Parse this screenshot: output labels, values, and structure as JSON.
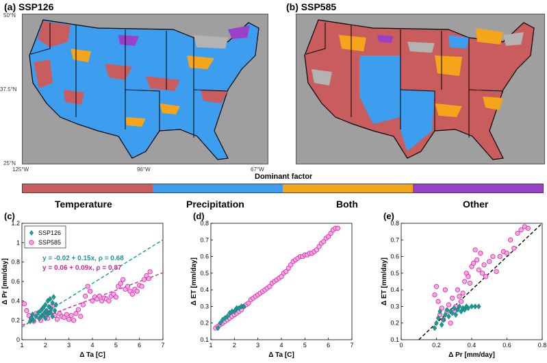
{
  "colors": {
    "temperature": "#c95c5c",
    "precipitation": "#3d9ef0",
    "both": "#f5a51a",
    "other": "#9a3fc8",
    "nodata": "#b3b3b3",
    "ssp126": "#1a9a96",
    "ssp585": "#d6249c"
  },
  "maps": {
    "a": {
      "title": "(a) SSP126"
    },
    "b": {
      "title": "(b) SSP585"
    },
    "lat_ticks": [
      "50°N",
      "37.5°N",
      "25°N"
    ],
    "lon_ticks": [
      "125°W",
      "96°W",
      "67°W"
    ]
  },
  "colorbar": {
    "label": "Dominant factor",
    "categories": [
      "Temperature",
      "Precipitation",
      "Both",
      "Other"
    ]
  },
  "chart_data": [
    {
      "type": "scatter",
      "panel": "(c)",
      "xlabel": "Δ Ta [C]",
      "ylabel": "Δ Pr [mm/day]",
      "xlim": [
        1,
        7
      ],
      "ylim": [
        0,
        1.2
      ],
      "xticks": [
        1,
        2,
        3,
        4,
        5,
        6,
        7
      ],
      "yticks": [
        0,
        0.2,
        0.4,
        0.6,
        0.8,
        1,
        1.2
      ],
      "legend": [
        "SSP126",
        "SSP585"
      ],
      "annotations": [
        "y = -0.02 + 0.15x,  ρ = 0.68",
        "y =  0.06 + 0.09x,  ρ = 0.87"
      ],
      "fits": [
        {
          "name": "SSP126",
          "intercept": -0.02,
          "slope": 0.15
        },
        {
          "name": "SSP585",
          "intercept": 0.06,
          "slope": 0.09
        }
      ],
      "series": [
        {
          "name": "SSP126",
          "points": [
            [
              1.35,
              0.19
            ],
            [
              1.4,
              0.22
            ],
            [
              1.45,
              0.26
            ],
            [
              1.5,
              0.2
            ],
            [
              1.6,
              0.24
            ],
            [
              1.7,
              0.28
            ],
            [
              1.75,
              0.22
            ],
            [
              1.8,
              0.3
            ],
            [
              1.85,
              0.25
            ],
            [
              1.9,
              0.33
            ],
            [
              1.95,
              0.27
            ],
            [
              2.0,
              0.36
            ],
            [
              2.0,
              0.22
            ],
            [
              2.05,
              0.3
            ],
            [
              2.1,
              0.4
            ],
            [
              2.1,
              0.26
            ],
            [
              2.15,
              0.34
            ],
            [
              2.2,
              0.28
            ],
            [
              2.2,
              0.42
            ],
            [
              2.25,
              0.32
            ],
            [
              2.3,
              0.38
            ],
            [
              2.3,
              0.24
            ],
            [
              2.35,
              0.44
            ],
            [
              2.4,
              0.3
            ],
            [
              2.45,
              0.36
            ]
          ]
        },
        {
          "name": "SSP585",
          "points": [
            [
              1.1,
              0.37
            ],
            [
              1.2,
              0.3
            ],
            [
              1.3,
              0.25
            ],
            [
              1.4,
              0.22
            ],
            [
              1.5,
              0.19
            ],
            [
              1.6,
              0.27
            ],
            [
              1.7,
              0.24
            ],
            [
              1.8,
              0.2
            ],
            [
              1.9,
              0.31
            ],
            [
              2.0,
              0.26
            ],
            [
              2.1,
              0.22
            ],
            [
              2.2,
              0.28
            ],
            [
              2.3,
              0.35
            ],
            [
              2.4,
              0.25
            ],
            [
              2.5,
              0.21
            ],
            [
              2.6,
              0.27
            ],
            [
              2.7,
              0.24
            ],
            [
              2.8,
              0.23
            ],
            [
              2.9,
              0.26
            ],
            [
              3.0,
              0.21
            ],
            [
              3.1,
              0.25
            ],
            [
              3.2,
              0.2
            ],
            [
              3.3,
              0.27
            ],
            [
              3.4,
              0.31
            ],
            [
              3.5,
              0.24
            ],
            [
              3.6,
              0.36
            ],
            [
              3.7,
              0.45
            ],
            [
              3.8,
              0.55
            ],
            [
              3.9,
              0.5
            ],
            [
              4.0,
              0.4
            ],
            [
              4.1,
              0.44
            ],
            [
              4.2,
              0.42
            ],
            [
              4.3,
              0.45
            ],
            [
              4.4,
              0.4
            ],
            [
              4.5,
              0.43
            ],
            [
              4.6,
              0.42
            ],
            [
              4.7,
              0.4
            ],
            [
              4.8,
              0.45
            ],
            [
              4.9,
              0.47
            ],
            [
              5.0,
              0.44
            ],
            [
              5.1,
              0.55
            ],
            [
              5.2,
              0.58
            ],
            [
              5.3,
              0.62
            ],
            [
              5.4,
              0.52
            ],
            [
              5.5,
              0.55
            ],
            [
              5.6,
              0.5
            ],
            [
              5.7,
              0.47
            ],
            [
              5.8,
              0.52
            ],
            [
              5.9,
              0.5
            ],
            [
              6.0,
              0.56
            ],
            [
              6.1,
              0.55
            ],
            [
              6.2,
              0.62
            ],
            [
              6.3,
              0.66
            ],
            [
              6.4,
              0.63
            ],
            [
              6.45,
              0.7
            ]
          ]
        }
      ]
    },
    {
      "type": "scatter",
      "panel": "(d)",
      "xlabel": "Δ Ta [C]",
      "ylabel": "Δ ET [mm/day]",
      "xlim": [
        1,
        7
      ],
      "ylim": [
        0.1,
        0.8
      ],
      "xticks": [
        1,
        2,
        3,
        4,
        5,
        6,
        7
      ],
      "yticks": [
        0.1,
        0.2,
        0.3,
        0.4,
        0.5,
        0.6,
        0.7,
        0.8
      ],
      "series": [
        {
          "name": "SSP126",
          "points": [
            [
              1.3,
              0.17
            ],
            [
              1.4,
              0.2
            ],
            [
              1.5,
              0.22
            ],
            [
              1.6,
              0.23
            ],
            [
              1.7,
              0.24
            ],
            [
              1.8,
              0.26
            ],
            [
              1.9,
              0.27
            ],
            [
              2.0,
              0.27
            ],
            [
              2.05,
              0.28
            ],
            [
              2.1,
              0.29
            ],
            [
              2.2,
              0.29
            ],
            [
              2.3,
              0.3
            ],
            [
              2.4,
              0.3
            ]
          ]
        },
        {
          "name": "SSP585",
          "points": [
            [
              1.2,
              0.17
            ],
            [
              1.3,
              0.18
            ],
            [
              1.4,
              0.19
            ],
            [
              1.5,
              0.2
            ],
            [
              1.6,
              0.21
            ],
            [
              1.7,
              0.22
            ],
            [
              1.8,
              0.23
            ],
            [
              1.9,
              0.24
            ],
            [
              2.0,
              0.25
            ],
            [
              2.1,
              0.26
            ],
            [
              2.2,
              0.27
            ],
            [
              2.3,
              0.28
            ],
            [
              2.4,
              0.3
            ],
            [
              2.5,
              0.31
            ],
            [
              2.6,
              0.32
            ],
            [
              2.7,
              0.34
            ],
            [
              2.8,
              0.35
            ],
            [
              2.9,
              0.36
            ],
            [
              3.0,
              0.37
            ],
            [
              3.1,
              0.38
            ],
            [
              3.2,
              0.39
            ],
            [
              3.3,
              0.4
            ],
            [
              3.4,
              0.41
            ],
            [
              3.5,
              0.42
            ],
            [
              3.6,
              0.44
            ],
            [
              3.7,
              0.45
            ],
            [
              3.8,
              0.46
            ],
            [
              3.9,
              0.47
            ],
            [
              4.0,
              0.48
            ],
            [
              4.1,
              0.5
            ],
            [
              4.2,
              0.51
            ],
            [
              4.3,
              0.53
            ],
            [
              4.4,
              0.55
            ],
            [
              4.5,
              0.57
            ],
            [
              4.6,
              0.58
            ],
            [
              4.7,
              0.59
            ],
            [
              4.8,
              0.6
            ],
            [
              4.9,
              0.6
            ],
            [
              5.0,
              0.61
            ],
            [
              5.1,
              0.61
            ],
            [
              5.2,
              0.62
            ],
            [
              5.3,
              0.62
            ],
            [
              5.4,
              0.63
            ],
            [
              5.5,
              0.64
            ],
            [
              5.6,
              0.66
            ],
            [
              5.7,
              0.68
            ],
            [
              5.8,
              0.69
            ],
            [
              5.9,
              0.71
            ],
            [
              6.0,
              0.72
            ],
            [
              6.1,
              0.74
            ],
            [
              6.2,
              0.76
            ],
            [
              6.3,
              0.77
            ],
            [
              6.4,
              0.77
            ]
          ]
        }
      ]
    },
    {
      "type": "scatter",
      "panel": "(e)",
      "xlabel": "Δ Pr [mm/day]",
      "ylabel": "Δ ET [mm/day]",
      "xlim": [
        0,
        0.8
      ],
      "ylim": [
        0.1,
        0.8
      ],
      "xticks": [
        0,
        0.2,
        0.4,
        0.6,
        0.8
      ],
      "yticks": [
        0.1,
        0.2,
        0.3,
        0.4,
        0.5,
        0.6,
        0.7,
        0.8
      ],
      "reference_line": [
        [
          0.1,
          0.1
        ],
        [
          0.8,
          0.8
        ]
      ],
      "series": [
        {
          "name": "SSP126",
          "points": [
            [
              0.19,
              0.17
            ],
            [
              0.2,
              0.2
            ],
            [
              0.21,
              0.23
            ],
            [
              0.22,
              0.27
            ],
            [
              0.23,
              0.19
            ],
            [
              0.24,
              0.22
            ],
            [
              0.25,
              0.25
            ],
            [
              0.26,
              0.28
            ],
            [
              0.27,
              0.24
            ],
            [
              0.28,
              0.27
            ],
            [
              0.29,
              0.26
            ],
            [
              0.3,
              0.29
            ],
            [
              0.31,
              0.25
            ],
            [
              0.32,
              0.28
            ],
            [
              0.33,
              0.3
            ],
            [
              0.34,
              0.27
            ],
            [
              0.35,
              0.29
            ],
            [
              0.36,
              0.28
            ],
            [
              0.37,
              0.3
            ],
            [
              0.38,
              0.29
            ],
            [
              0.4,
              0.3
            ],
            [
              0.42,
              0.3
            ],
            [
              0.44,
              0.3
            ]
          ]
        },
        {
          "name": "SSP585",
          "points": [
            [
              0.19,
              0.37
            ],
            [
              0.2,
              0.42
            ],
            [
              0.21,
              0.33
            ],
            [
              0.22,
              0.25
            ],
            [
              0.23,
              0.29
            ],
            [
              0.24,
              0.22
            ],
            [
              0.25,
              0.4
            ],
            [
              0.26,
              0.27
            ],
            [
              0.27,
              0.31
            ],
            [
              0.28,
              0.2
            ],
            [
              0.29,
              0.35
            ],
            [
              0.3,
              0.27
            ],
            [
              0.31,
              0.3
            ],
            [
              0.32,
              0.4
            ],
            [
              0.33,
              0.36
            ],
            [
              0.34,
              0.33
            ],
            [
              0.35,
              0.38
            ],
            [
              0.36,
              0.45
            ],
            [
              0.37,
              0.5
            ],
            [
              0.38,
              0.48
            ],
            [
              0.39,
              0.44
            ],
            [
              0.4,
              0.54
            ],
            [
              0.41,
              0.56
            ],
            [
              0.42,
              0.64
            ],
            [
              0.43,
              0.58
            ],
            [
              0.44,
              0.52
            ],
            [
              0.45,
              0.62
            ],
            [
              0.46,
              0.5
            ],
            [
              0.47,
              0.55
            ],
            [
              0.48,
              0.48
            ],
            [
              0.5,
              0.57
            ],
            [
              0.52,
              0.6
            ],
            [
              0.54,
              0.51
            ],
            [
              0.56,
              0.6
            ],
            [
              0.58,
              0.63
            ],
            [
              0.6,
              0.62
            ],
            [
              0.62,
              0.7
            ],
            [
              0.64,
              0.65
            ],
            [
              0.66,
              0.74
            ],
            [
              0.68,
              0.76
            ],
            [
              0.7,
              0.78
            ],
            [
              0.72,
              0.77
            ]
          ]
        }
      ]
    }
  ]
}
